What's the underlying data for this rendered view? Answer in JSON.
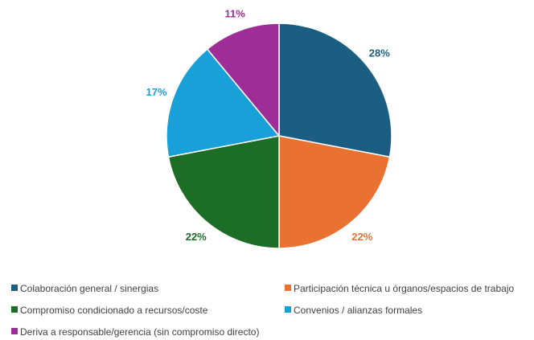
{
  "chart_data": {
    "type": "pie",
    "title": "",
    "start_angle_deg": 0,
    "direction": "clockwise",
    "legend_position": "bottom",
    "slices": [
      {
        "label": "Colaboración general / sinergias",
        "value": 28,
        "display": "28%",
        "color": "#1b5e82"
      },
      {
        "label": "Participación técnica u órganos/espacios de trabajo",
        "value": 22,
        "display": "22%",
        "color": "#e97232"
      },
      {
        "label": "Compromiso condicionado a recursos/coste",
        "value": 22,
        "display": "22%",
        "color": "#1c6d25"
      },
      {
        "label": "Convenios / alianzas formales",
        "value": 17,
        "display": "17%",
        "color": "#1aa0d8"
      },
      {
        "label": "Deriva a responsable/gerencia (sin compromiso directo)",
        "value": 11,
        "display": "11%",
        "color": "#9f2d97"
      }
    ]
  }
}
